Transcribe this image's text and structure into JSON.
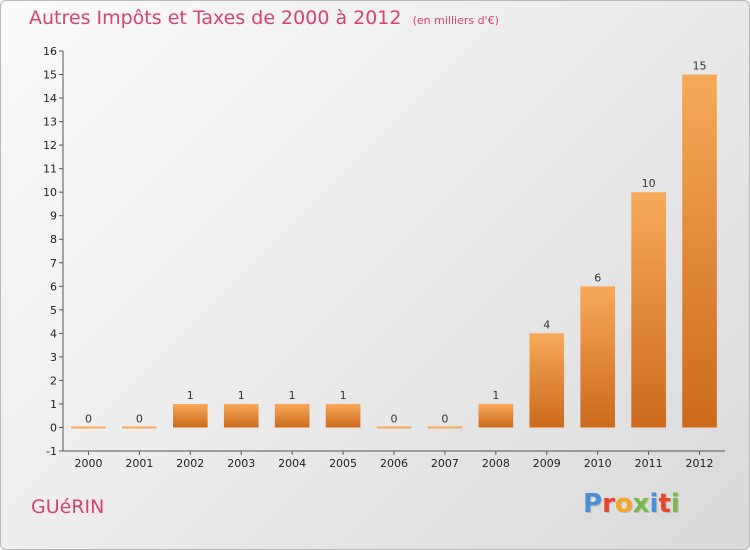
{
  "header": {
    "title": "Autres Impôts et Taxes de 2000 à 2012",
    "subtitle": "(en milliers d'€)"
  },
  "footer": {
    "commune": "GUéRIN",
    "logo_letters": [
      "P",
      "r",
      "o",
      "x",
      "i",
      "t",
      "i"
    ],
    "logo_colors": [
      "#4a90d9",
      "#e8452c",
      "#f5a623",
      "#7ab648",
      "#4a90d9",
      "#e8452c",
      "#7ab648"
    ]
  },
  "colors": {
    "title": "#d8426e",
    "bar_top": "#f7a95a",
    "bar_bottom": "#cc6a1a",
    "axis": "#555555"
  },
  "chart_data": {
    "type": "bar",
    "title": "Autres Impôts et Taxes de 2000 à 2012",
    "subtitle": "(en milliers d'€)",
    "xlabel": "",
    "ylabel": "",
    "categories": [
      "2000",
      "2001",
      "2002",
      "2003",
      "2004",
      "2005",
      "2006",
      "2007",
      "2008",
      "2009",
      "2010",
      "2011",
      "2012"
    ],
    "values": [
      0,
      0,
      1,
      1,
      1,
      1,
      0,
      0,
      1,
      4,
      6,
      10,
      15
    ],
    "data_labels": [
      "0",
      "0",
      "1",
      "1",
      "1",
      "1",
      "0",
      "0",
      "1",
      "4",
      "6",
      "10",
      "15"
    ],
    "ylim": [
      -1,
      16
    ],
    "yticks": [
      -1,
      0,
      1,
      2,
      3,
      4,
      5,
      6,
      7,
      8,
      9,
      10,
      11,
      12,
      13,
      14,
      15,
      16
    ],
    "grid": false,
    "legend": "none"
  }
}
